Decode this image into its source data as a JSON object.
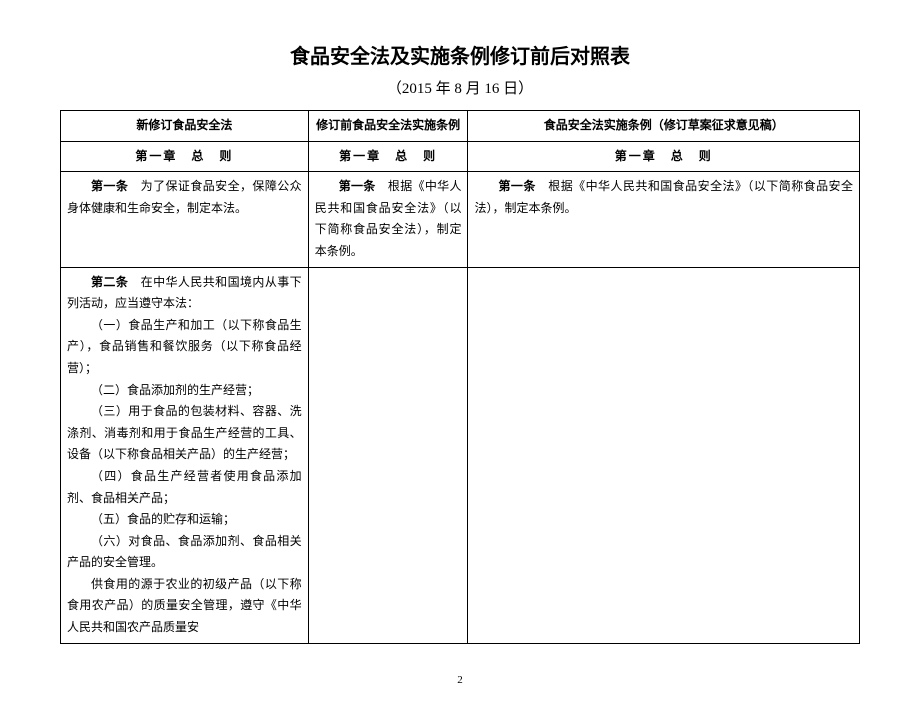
{
  "title": "食品安全法及实施条例修订前后对照表",
  "title_fontsize": "20px",
  "subtitle": "（2015 年 8 月 16 日）",
  "subtitle_fontsize": "15px",
  "columns": {
    "col1_header": "新修订食品安全法",
    "col2_header": "修订前食品安全法实施条例",
    "col3_header": "食品安全法实施条例（修订草案征求意见稿）"
  },
  "chapter": "第一章　总　则",
  "row1": {
    "col1_bold": "第一条",
    "col1_text": "　为了保证食品安全，保障公众身体健康和生命安全，制定本法。",
    "col2_bold": "第一条",
    "col2_text": "　根据《中华人民共和国食品安全法》（以下简称食品安全法），制定本条例。",
    "col3_bold": "第一条",
    "col3_text": "　根据《中华人民共和国食品安全法》（以下简称食品安全法），制定本条例。"
  },
  "row2": {
    "col1_bold": "第二条",
    "col1_intro": "　在中华人民共和国境内从事下列活动，应当遵守本法：",
    "item1": "（一）食品生产和加工（以下称食品生产），食品销售和餐饮服务（以下称食品经营）；",
    "item2": "（二）食品添加剂的生产经营；",
    "item3": "（三）用于食品的包装材料、容器、洗涤剂、消毒剂和用于食品生产经营的工具、设备（以下称食品相关产品）的生产经营；",
    "item4": "（四）食品生产经营者使用食品添加剂、食品相关产品；",
    "item5": "（五）食品的贮存和运输；",
    "item6": "（六）对食品、食品添加剂、食品相关产品的安全管理。",
    "para2": "供食用的源于农业的初级产品（以下称食用农产品）的质量安全管理，遵守《中华人民共和国农产品质量安"
  },
  "page_number": "2"
}
